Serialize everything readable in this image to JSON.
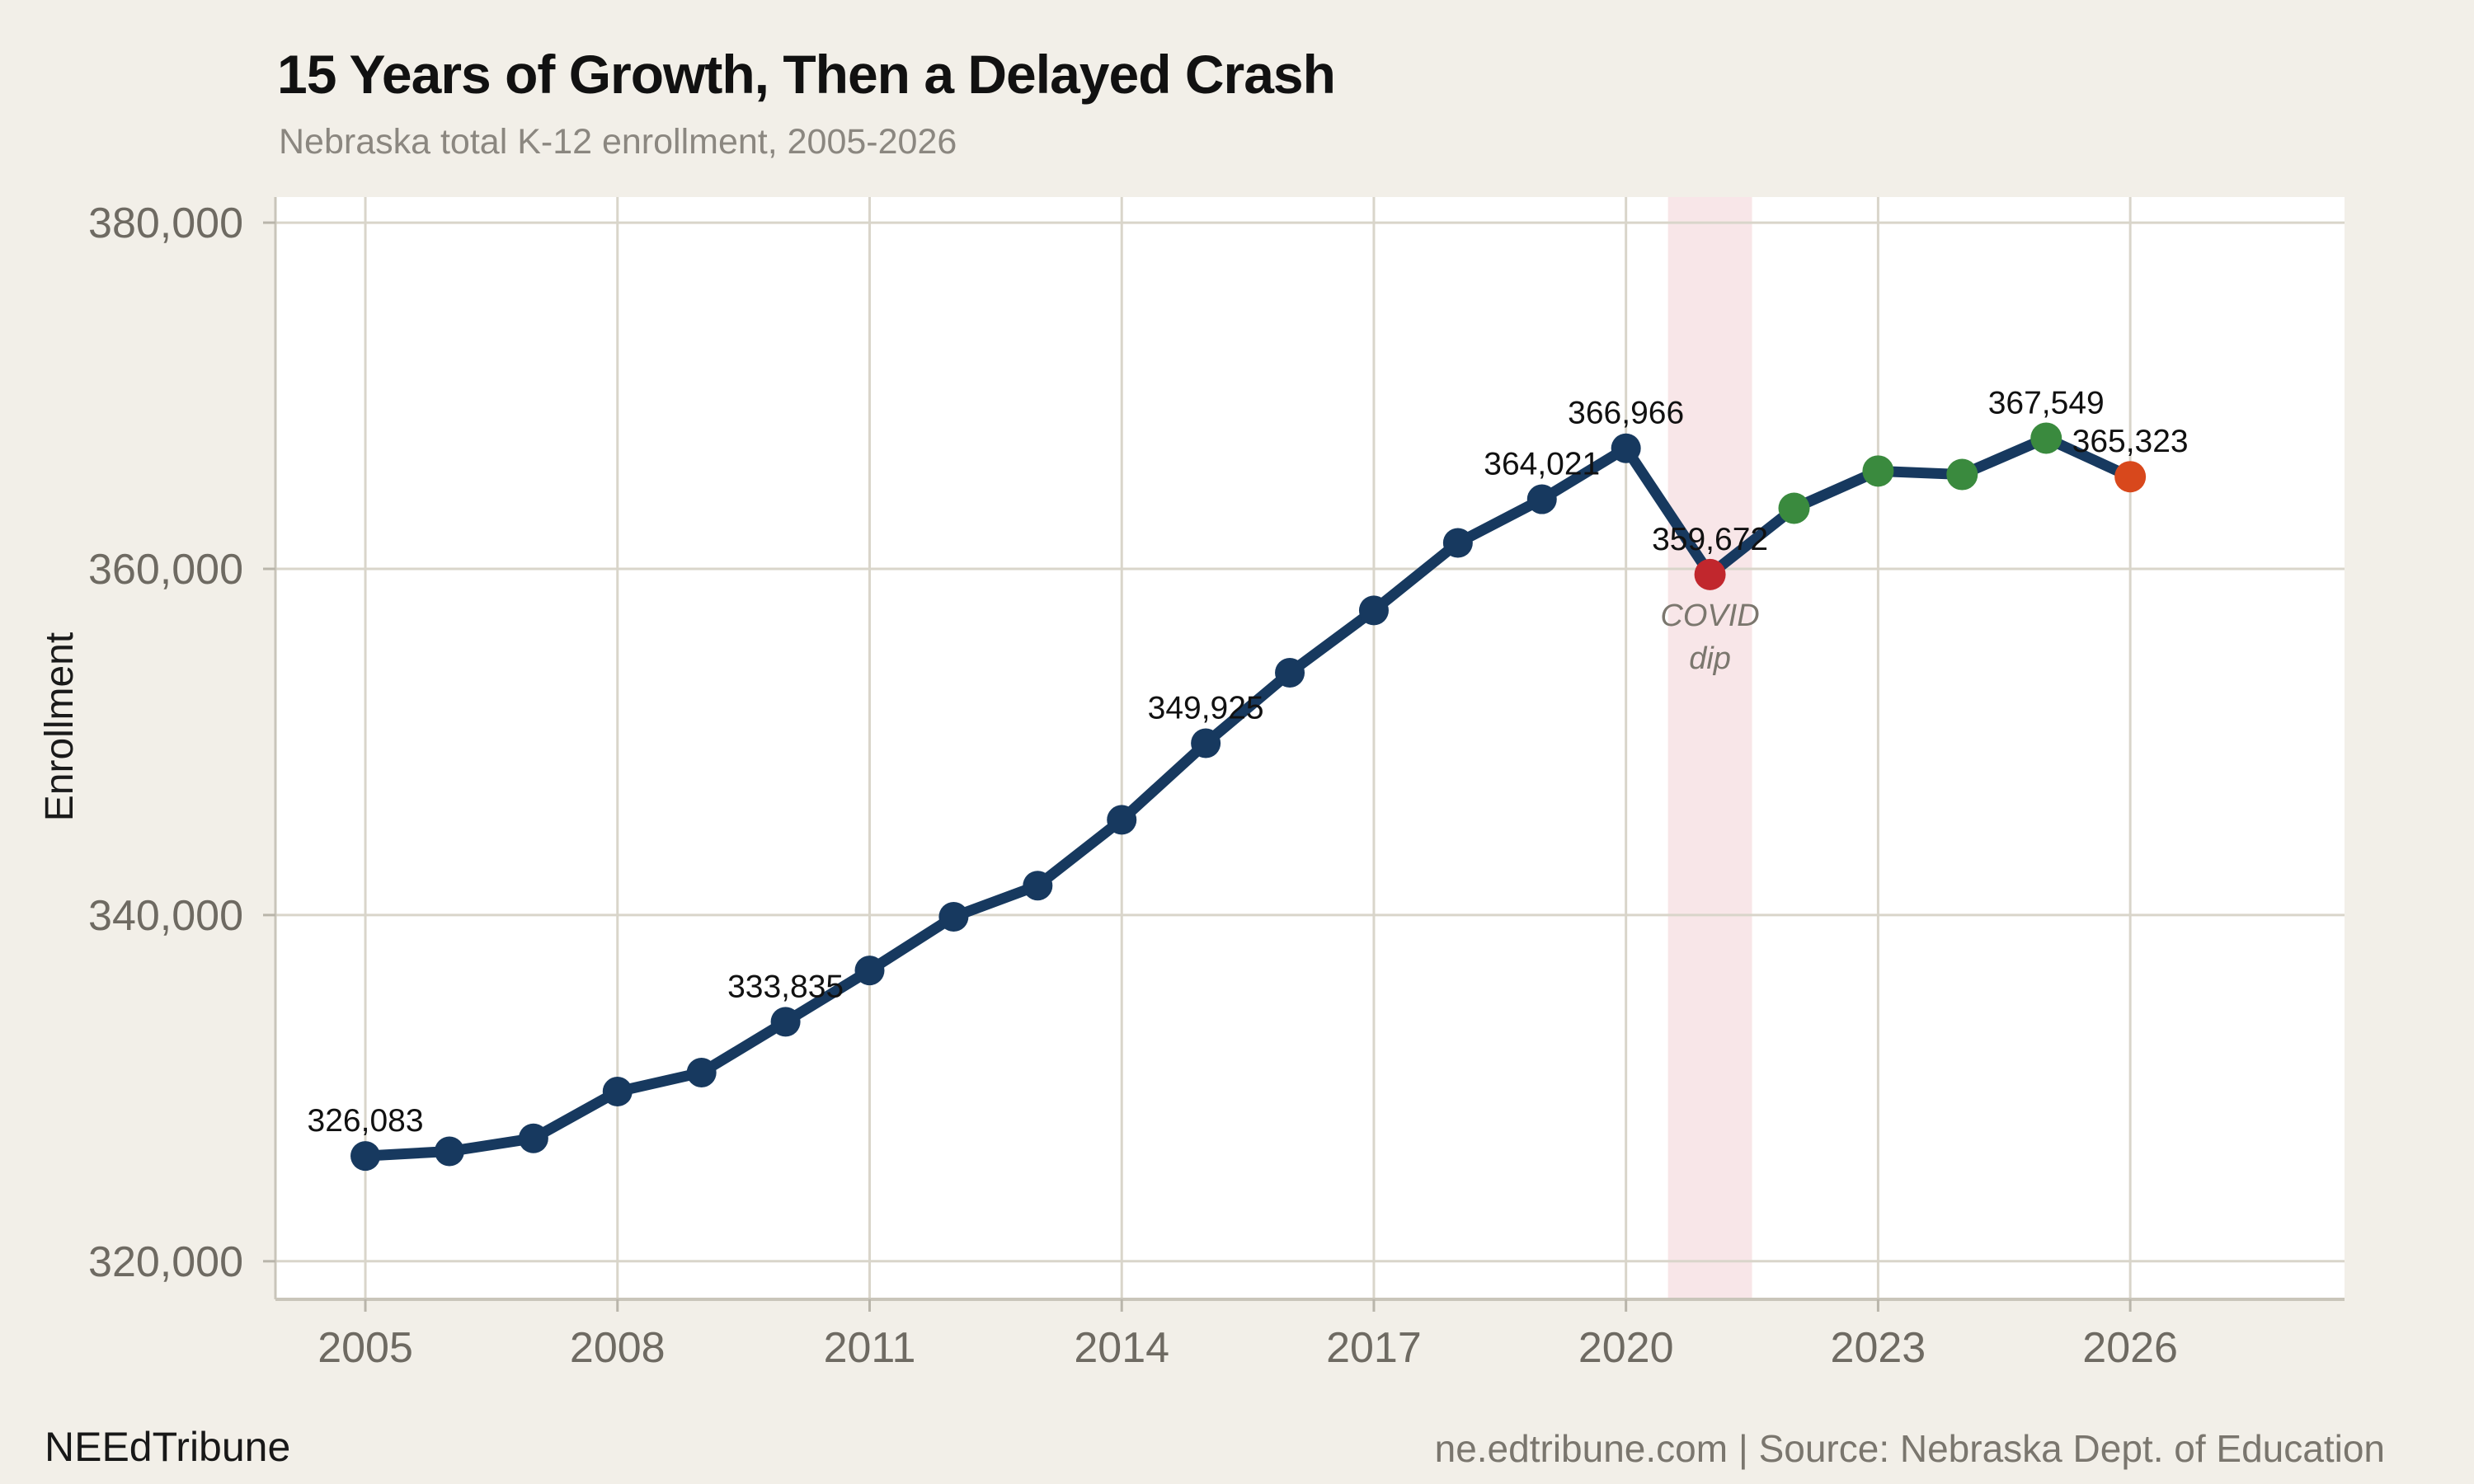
{
  "header": {
    "title": "15 Years of Growth, Then a Delayed Crash",
    "subtitle": "Nebraska total K-12 enrollment, 2005-2026"
  },
  "footer": {
    "brand": "NEEdTribune",
    "source": "ne.edtribune.com | Source: Nebraska Dept. of Education"
  },
  "chart_data": {
    "type": "line",
    "title": "15 Years of Growth, Then a Delayed Crash",
    "subtitle": "Nebraska total K-12 enrollment, 2005-2026",
    "xlabel": "",
    "ylabel": "Enrollment",
    "x": [
      2005,
      2006,
      2007,
      2008,
      2009,
      2010,
      2011,
      2012,
      2013,
      2014,
      2015,
      2016,
      2017,
      2018,
      2019,
      2020,
      2021,
      2022,
      2023,
      2024,
      2025,
      2026
    ],
    "values": [
      326083,
      326350,
      327100,
      329800,
      330900,
      333835,
      336800,
      339900,
      341700,
      345500,
      349925,
      354000,
      357600,
      361500,
      364021,
      366966,
      359672,
      363500,
      365650,
      365450,
      367549,
      365323
    ],
    "labeled_years": [
      2005,
      2010,
      2015,
      2019,
      2020,
      2021,
      2025,
      2026
    ],
    "point_color_overrides": {
      "2021": "red",
      "2022": "green",
      "2023": "green",
      "2024": "green",
      "2025": "green",
      "2026": "orange"
    },
    "x_ticks": [
      2005,
      2008,
      2011,
      2014,
      2017,
      2020,
      2023,
      2026
    ],
    "y_ticks": [
      320000,
      340000,
      360000,
      380000
    ],
    "xlim": [
      2003.93,
      2028.55
    ],
    "ylim": [
      317800,
      381480
    ],
    "grid": true,
    "legend": "none",
    "band": {
      "from_year": 2020.5,
      "to_year": 2021.5
    },
    "annotation": {
      "text_lines": [
        "COVID",
        "dip"
      ],
      "year": 2021
    }
  },
  "colors": {
    "background": "#f2efe8",
    "plot_background": "#ffffff",
    "grid": "#d9d5ca",
    "spine": "#c9c5ba",
    "tick_mark": "#b9b5aa",
    "tick_label": "#6e6a62",
    "line": "#17395f",
    "navy": "#17395f",
    "green": "#3a8a3e",
    "red": "#c1272d",
    "orange": "#d8481c",
    "band": "#f8e6e8",
    "value_label": "#111111",
    "axis_title": "#1a1a1a",
    "annotation_text": "#7b776e"
  }
}
